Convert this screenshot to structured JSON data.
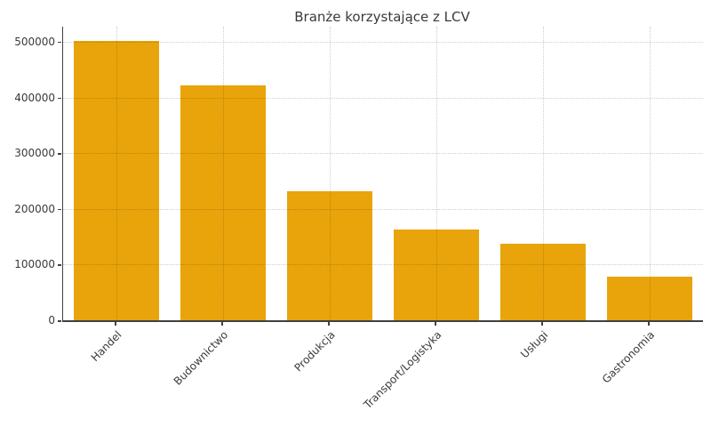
{
  "chart_data": {
    "type": "bar",
    "title": "Branże korzystające z LCV",
    "categories": [
      "Handel",
      "Budownictwo",
      "Produkcja",
      "Transport/Logistyka",
      "Usługi",
      "Gastronomia"
    ],
    "values": [
      502000,
      421000,
      232000,
      163000,
      138000,
      78000
    ],
    "xlabel": "",
    "ylabel": "",
    "ylim": [
      0,
      527000
    ],
    "yticks": [
      0,
      100000,
      200000,
      300000,
      400000,
      500000
    ],
    "xtick_rotation_deg": 45,
    "legend": "none",
    "grid": "dotted horizontal and vertical",
    "bar_color": "#E8A40A",
    "grid_color": "#CCCCCC",
    "axis_color": "#404040",
    "text_color": "#3A3A3A",
    "background_color": "#FFFFFF"
  }
}
